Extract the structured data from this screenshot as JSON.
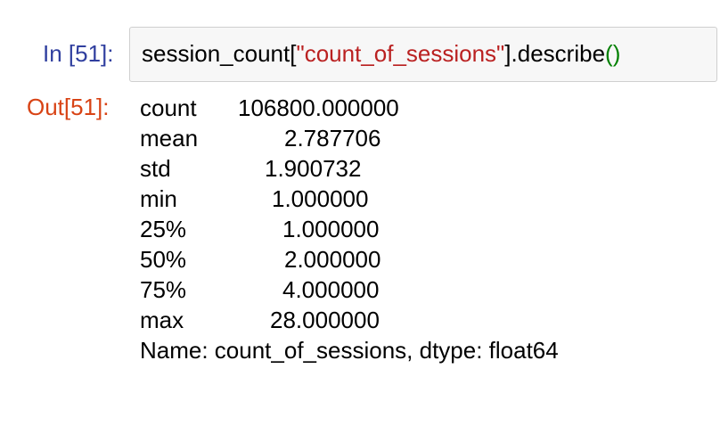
{
  "cell": {
    "in_prompt": "In [51]:",
    "out_prompt": "Out[51]:",
    "code": {
      "object": "session_count",
      "open_bracket": "[",
      "key": "\"count_of_sessions\"",
      "close_bracket": "]",
      "method": ".describe",
      "parens": "()"
    },
    "output": {
      "rows": [
        {
          "label": "count",
          "value": "106800.000000"
        },
        {
          "label": "mean",
          "value": "2.787706"
        },
        {
          "label": "std",
          "value": "1.900732"
        },
        {
          "label": "min",
          "value": "1.000000"
        },
        {
          "label": "25%",
          "value": "1.000000"
        },
        {
          "label": "50%",
          "value": "2.000000"
        },
        {
          "label": "75%",
          "value": "4.000000"
        },
        {
          "label": "max",
          "value": "28.000000"
        }
      ],
      "footer": "Name: count_of_sessions, dtype: float64"
    }
  },
  "colors": {
    "in_prompt": "#303f9f",
    "out_prompt": "#d84315",
    "string": "#ba2121",
    "paren": "#008000",
    "input_bg": "#f7f7f7",
    "input_border": "#cfcfcf"
  }
}
